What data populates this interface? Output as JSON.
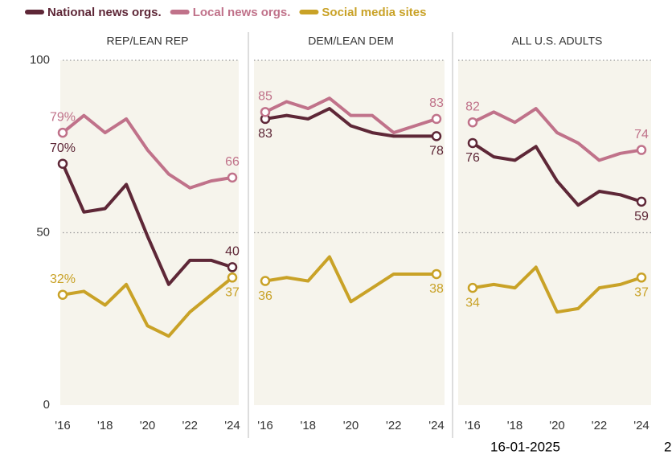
{
  "chart_data": [
    {
      "type": "line",
      "title": "REP/LEAN REP",
      "x": [
        2016,
        2017,
        2018,
        2019,
        2020,
        2021,
        2022,
        2023,
        2024
      ],
      "xlim": [
        2016,
        2024
      ],
      "xticks": [
        {
          "value": 2016,
          "label": "'16"
        },
        {
          "value": 2018,
          "label": "'18"
        },
        {
          "value": 2020,
          "label": "'20"
        },
        {
          "value": 2022,
          "label": "'22"
        },
        {
          "value": 2024,
          "label": "'24"
        }
      ],
      "ylim": [
        0,
        100
      ],
      "yticks": [
        0,
        50,
        100
      ],
      "grid": true,
      "series": [
        {
          "name": "National news orgs.",
          "color": "#5e2737",
          "values": [
            70,
            56,
            57,
            64,
            49,
            35,
            42,
            42,
            40
          ],
          "value_labels": [
            "70%",
            null,
            null,
            null,
            null,
            null,
            null,
            null,
            "40"
          ]
        },
        {
          "name": "Local news orgs.",
          "color": "#c0728a",
          "values": [
            79,
            84,
            79,
            83,
            74,
            67,
            63,
            65,
            66
          ],
          "value_labels": [
            "79%",
            null,
            null,
            null,
            null,
            null,
            null,
            null,
            "66"
          ]
        },
        {
          "name": "Social media sites",
          "color": "#c9a227",
          "values": [
            32,
            33,
            29,
            35,
            23,
            20,
            27,
            32,
            37
          ],
          "value_labels": [
            "32%",
            null,
            null,
            null,
            null,
            null,
            null,
            null,
            "37"
          ]
        }
      ]
    },
    {
      "type": "line",
      "title": "DEM/LEAN DEM",
      "x": [
        2016,
        2017,
        2018,
        2019,
        2020,
        2021,
        2022,
        2023,
        2024
      ],
      "xlim": [
        2016,
        2024
      ],
      "xticks": [
        {
          "value": 2016,
          "label": "'16"
        },
        {
          "value": 2018,
          "label": "'18"
        },
        {
          "value": 2020,
          "label": "'20"
        },
        {
          "value": 2022,
          "label": "'22"
        },
        {
          "value": 2024,
          "label": "'24"
        }
      ],
      "ylim": [
        0,
        100
      ],
      "grid": true,
      "series": [
        {
          "color": "#5e2737",
          "values": [
            83,
            84,
            83,
            86,
            81,
            79,
            78,
            78,
            78
          ],
          "value_labels": [
            "83",
            null,
            null,
            null,
            null,
            null,
            null,
            null,
            "78"
          ]
        },
        {
          "color": "#c0728a",
          "values": [
            85,
            88,
            86,
            89,
            84,
            84,
            79,
            81,
            83
          ],
          "value_labels": [
            "85",
            null,
            null,
            null,
            null,
            null,
            null,
            null,
            "83"
          ]
        },
        {
          "color": "#c9a227",
          "values": [
            36,
            37,
            36,
            43,
            30,
            34,
            38,
            38,
            38
          ],
          "value_labels": [
            "36",
            null,
            null,
            null,
            null,
            null,
            null,
            null,
            "38"
          ]
        }
      ]
    },
    {
      "type": "line",
      "title": "ALL U.S. ADULTS",
      "x": [
        2016,
        2017,
        2018,
        2019,
        2020,
        2021,
        2022,
        2023,
        2024
      ],
      "xlim": [
        2016,
        2024
      ],
      "xticks": [
        {
          "value": 2016,
          "label": "'16"
        },
        {
          "value": 2018,
          "label": "'18"
        },
        {
          "value": 2020,
          "label": "'20"
        },
        {
          "value": 2022,
          "label": "'22"
        },
        {
          "value": 2024,
          "label": "'24"
        }
      ],
      "ylim": [
        0,
        100
      ],
      "grid": true,
      "series": [
        {
          "color": "#5e2737",
          "values": [
            76,
            72,
            71,
            75,
            65,
            58,
            62,
            61,
            59
          ],
          "value_labels": [
            "76",
            null,
            null,
            null,
            null,
            null,
            null,
            null,
            "59"
          ]
        },
        {
          "color": "#c0728a",
          "values": [
            82,
            85,
            82,
            86,
            79,
            76,
            71,
            73,
            74
          ],
          "value_labels": [
            "82",
            null,
            null,
            null,
            null,
            null,
            null,
            null,
            "74"
          ]
        },
        {
          "color": "#c9a227",
          "values": [
            34,
            35,
            34,
            40,
            27,
            28,
            34,
            35,
            37
          ],
          "value_labels": [
            "34",
            null,
            null,
            null,
            null,
            null,
            null,
            null,
            "37"
          ]
        }
      ]
    }
  ],
  "footer": {
    "date": "16-01-2025",
    "page": "2"
  }
}
